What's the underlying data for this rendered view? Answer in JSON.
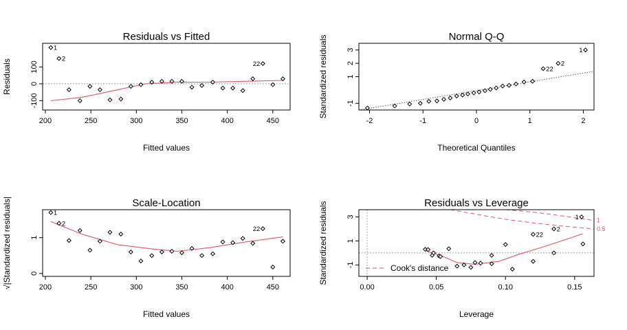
{
  "chart_data": [
    {
      "id": "rvf",
      "type": "scatter",
      "title": "Residuals vs Fitted",
      "xlabel": "Fitted values",
      "ylabel": "Residuals",
      "xlim": [
        197,
        469
      ],
      "ylim": [
        -155,
        240
      ],
      "xticks": [
        200,
        250,
        300,
        350,
        400,
        450
      ],
      "yticks": [
        -100,
        0,
        100
      ],
      "hline": 0,
      "points": [
        [
          206,
          215
        ],
        [
          215,
          150
        ],
        [
          226,
          -35
        ],
        [
          238,
          -100
        ],
        [
          249,
          -15
        ],
        [
          260,
          -35
        ],
        [
          271,
          -95
        ],
        [
          283,
          -90
        ],
        [
          294,
          -15
        ],
        [
          305,
          -5
        ],
        [
          317,
          10
        ],
        [
          328,
          15
        ],
        [
          339,
          15
        ],
        [
          350,
          15
        ],
        [
          361,
          -20
        ],
        [
          372,
          -10
        ],
        [
          384,
          10
        ],
        [
          395,
          -25
        ],
        [
          406,
          -25
        ],
        [
          417,
          -40
        ],
        [
          428,
          30
        ],
        [
          439,
          120
        ],
        [
          450,
          -5
        ],
        [
          461,
          30
        ]
      ],
      "smooth": [
        [
          206,
          -100
        ],
        [
          240,
          -80
        ],
        [
          275,
          -40
        ],
        [
          310,
          0
        ],
        [
          345,
          10
        ],
        [
          380,
          10
        ],
        [
          420,
          15
        ],
        [
          461,
          20
        ]
      ],
      "annotations": [
        {
          "text": "1",
          "x": 206,
          "y": 215,
          "side": "right"
        },
        {
          "text": "2",
          "x": 215,
          "y": 150,
          "side": "right"
        },
        {
          "text": "22",
          "x": 439,
          "y": 120,
          "side": "left"
        }
      ]
    },
    {
      "id": "qq",
      "type": "scatter",
      "title": "Normal Q-Q",
      "xlabel": "Theoretical Quantiles",
      "ylabel": "Standardized residuals",
      "xlim": [
        -2.2,
        2.2
      ],
      "ylim": [
        -1.5,
        3.5
      ],
      "xticks": [
        -2,
        -1,
        0,
        1,
        2
      ],
      "yticks": [
        -1,
        1,
        2,
        3
      ],
      "line": [
        [
          -2.2,
          -1.5
        ],
        [
          2.2,
          1.4
        ]
      ],
      "points": [
        [
          -2.04,
          -1.35
        ],
        [
          -1.53,
          -1.2
        ],
        [
          -1.25,
          -1.05
        ],
        [
          -1.05,
          -1.0
        ],
        [
          -0.89,
          -0.85
        ],
        [
          -0.74,
          -0.82
        ],
        [
          -0.61,
          -0.7
        ],
        [
          -0.49,
          -0.6
        ],
        [
          -0.37,
          -0.45
        ],
        [
          -0.26,
          -0.38
        ],
        [
          -0.16,
          -0.3
        ],
        [
          -0.05,
          -0.22
        ],
        [
          0.05,
          -0.15
        ],
        [
          0.16,
          -0.05
        ],
        [
          0.26,
          0.05
        ],
        [
          0.37,
          0.15
        ],
        [
          0.49,
          0.3
        ],
        [
          0.61,
          0.35
        ],
        [
          0.74,
          0.45
        ],
        [
          0.89,
          0.6
        ],
        [
          1.05,
          0.65
        ],
        [
          1.25,
          1.6
        ],
        [
          1.53,
          2.0
        ],
        [
          2.04,
          3.0
        ]
      ],
      "annotations": [
        {
          "text": "1",
          "x": 2.04,
          "y": 3.0,
          "side": "left"
        },
        {
          "text": "2",
          "x": 1.53,
          "y": 2.0,
          "side": "right"
        },
        {
          "text": "22",
          "x": 1.25,
          "y": 1.6,
          "side": "right"
        }
      ]
    },
    {
      "id": "sl",
      "type": "scatter",
      "title": "Scale-Location",
      "xlabel": "Fitted values",
      "ylabel": "√|Standardized residuals|",
      "xlim": [
        197,
        469
      ],
      "ylim": [
        -0.08,
        1.78
      ],
      "xticks": [
        200,
        250,
        300,
        350,
        400,
        450
      ],
      "yticks": [
        0.0,
        1.0
      ],
      "points": [
        [
          206,
          1.7
        ],
        [
          215,
          1.4
        ],
        [
          226,
          0.92
        ],
        [
          238,
          1.2
        ],
        [
          249,
          0.65
        ],
        [
          260,
          0.9
        ],
        [
          271,
          1.15
        ],
        [
          283,
          1.1
        ],
        [
          294,
          0.6
        ],
        [
          305,
          0.35
        ],
        [
          317,
          0.5
        ],
        [
          328,
          0.6
        ],
        [
          339,
          0.62
        ],
        [
          350,
          0.58
        ],
        [
          361,
          0.7
        ],
        [
          372,
          0.5
        ],
        [
          384,
          0.55
        ],
        [
          395,
          0.88
        ],
        [
          406,
          0.86
        ],
        [
          417,
          0.98
        ],
        [
          428,
          0.84
        ],
        [
          439,
          1.25
        ],
        [
          450,
          0.18
        ],
        [
          461,
          0.9
        ]
      ],
      "smooth": [
        [
          206,
          1.45
        ],
        [
          240,
          1.1
        ],
        [
          280,
          0.8
        ],
        [
          320,
          0.68
        ],
        [
          345,
          0.62
        ],
        [
          380,
          0.72
        ],
        [
          420,
          0.88
        ],
        [
          461,
          1.02
        ]
      ],
      "annotations": [
        {
          "text": "1",
          "x": 206,
          "y": 1.7,
          "side": "right"
        },
        {
          "text": "2",
          "x": 215,
          "y": 1.4,
          "side": "right"
        },
        {
          "text": "22",
          "x": 439,
          "y": 1.25,
          "side": "left"
        }
      ]
    },
    {
      "id": "rvl",
      "type": "scatter",
      "title": "Residuals vs Leverage",
      "xlabel": "Leverage",
      "ylabel": "Standardized residuals",
      "xlim": [
        -0.006,
        0.164
      ],
      "ylim": [
        -1.95,
        3.6
      ],
      "xticks": [
        0.0,
        0.05,
        0.1,
        0.15
      ],
      "yticks": [
        -1,
        1,
        3
      ],
      "hline": 0,
      "vline": 0,
      "points": [
        [
          0.042,
          0.3
        ],
        [
          0.044,
          0.28
        ],
        [
          0.047,
          -0.2
        ],
        [
          0.048,
          0.0
        ],
        [
          0.052,
          -0.25
        ],
        [
          0.053,
          -0.3
        ],
        [
          0.059,
          0.35
        ],
        [
          0.065,
          -1.1
        ],
        [
          0.07,
          -1.0
        ],
        [
          0.075,
          -1.2
        ],
        [
          0.078,
          -0.8
        ],
        [
          0.082,
          -0.85
        ],
        [
          0.09,
          -0.9
        ],
        [
          0.09,
          -0.2
        ],
        [
          0.1,
          0.7
        ],
        [
          0.105,
          -1.35
        ],
        [
          0.12,
          -0.7
        ],
        [
          0.12,
          1.55
        ],
        [
          0.135,
          0.0
        ],
        [
          0.135,
          2.0
        ],
        [
          0.155,
          3.0
        ],
        [
          0.156,
          0.75
        ]
      ],
      "smooth": [
        [
          0.042,
          0.2
        ],
        [
          0.055,
          -0.3
        ],
        [
          0.065,
          -0.8
        ],
        [
          0.078,
          -0.95
        ],
        [
          0.095,
          -0.7
        ],
        [
          0.11,
          -0.1
        ],
        [
          0.13,
          0.6
        ],
        [
          0.156,
          1.6
        ]
      ],
      "cook_curves": [
        {
          "label": "1",
          "points": [
            [
              0.1,
              3.6
            ],
            [
              0.12,
              3.4
            ],
            [
              0.14,
              3.1
            ],
            [
              0.164,
              2.7
            ]
          ]
        },
        {
          "label": "0.5",
          "points": [
            [
              0.06,
              3.6
            ],
            [
              0.08,
              3.2
            ],
            [
              0.1,
              2.8
            ],
            [
              0.12,
              2.5
            ],
            [
              0.14,
              2.25
            ],
            [
              0.164,
              2.0
            ]
          ]
        }
      ],
      "legend": {
        "text": "Cook's distance",
        "position": "bottom-left"
      },
      "annotations": [
        {
          "text": "1",
          "x": 0.155,
          "y": 3.0,
          "side": "left"
        },
        {
          "text": "2",
          "x": 0.135,
          "y": 2.0,
          "side": "right"
        },
        {
          "text": "22",
          "x": 0.12,
          "y": 1.55,
          "side": "right"
        }
      ]
    }
  ]
}
